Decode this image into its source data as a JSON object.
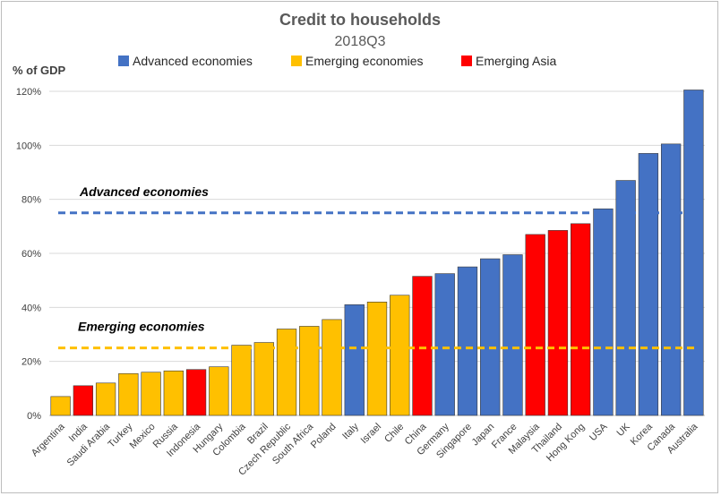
{
  "chart_data": {
    "type": "bar",
    "title": "Credit to households",
    "subtitle": "2018Q3",
    "ylabel": "% of GDP",
    "xlabel": "",
    "ylim": [
      0,
      120
    ],
    "yticks": [
      0,
      20,
      40,
      60,
      80,
      100,
      120
    ],
    "ytick_labels": [
      "0%",
      "20%",
      "40%",
      "60%",
      "80%",
      "100%",
      "120%"
    ],
    "grid": true,
    "legend_position": "top",
    "legend": [
      {
        "name": "Advanced economies",
        "color": "#4472C4"
      },
      {
        "name": "Emerging economies",
        "color": "#FFC000"
      },
      {
        "name": "Emerging Asia",
        "color": "#FF0000"
      }
    ],
    "categories": [
      "Argentina",
      "India",
      "Saudi Arabia",
      "Turkey",
      "Mexico",
      "Russia",
      "Indonesia",
      "Hungary",
      "Colombia",
      "Brazil",
      "Czech Republic",
      "South Africa",
      "Poland",
      "Italy",
      "Israel",
      "Chile",
      "China",
      "Germany",
      "Singapore",
      "Japan",
      "France",
      "Malaysia",
      "Thailand",
      "Hong Kong",
      "USA",
      "UK",
      "Korea",
      "Canada",
      "Australia"
    ],
    "values": [
      7,
      11,
      12,
      15.5,
      16,
      16.5,
      17,
      18,
      26,
      27,
      32,
      33,
      35.5,
      41,
      42,
      44.5,
      51.5,
      52.5,
      55,
      58,
      59.5,
      67,
      68.5,
      71,
      76.5,
      87,
      97,
      100.5,
      120.5
    ],
    "groups": [
      "Emerging economies",
      "Emerging Asia",
      "Emerging economies",
      "Emerging economies",
      "Emerging economies",
      "Emerging economies",
      "Emerging Asia",
      "Emerging economies",
      "Emerging economies",
      "Emerging economies",
      "Emerging economies",
      "Emerging economies",
      "Emerging economies",
      "Advanced economies",
      "Emerging economies",
      "Emerging economies",
      "Emerging Asia",
      "Advanced economies",
      "Advanced economies",
      "Advanced economies",
      "Advanced economies",
      "Emerging Asia",
      "Emerging Asia",
      "Emerging Asia",
      "Advanced economies",
      "Advanced economies",
      "Advanced economies",
      "Advanced economies",
      "Advanced economies"
    ],
    "reference_lines": [
      {
        "label": "Advanced economies",
        "value": 75,
        "color": "#4472C4"
      },
      {
        "label": "Emerging economies",
        "value": 25,
        "color": "#FFC000"
      }
    ]
  }
}
